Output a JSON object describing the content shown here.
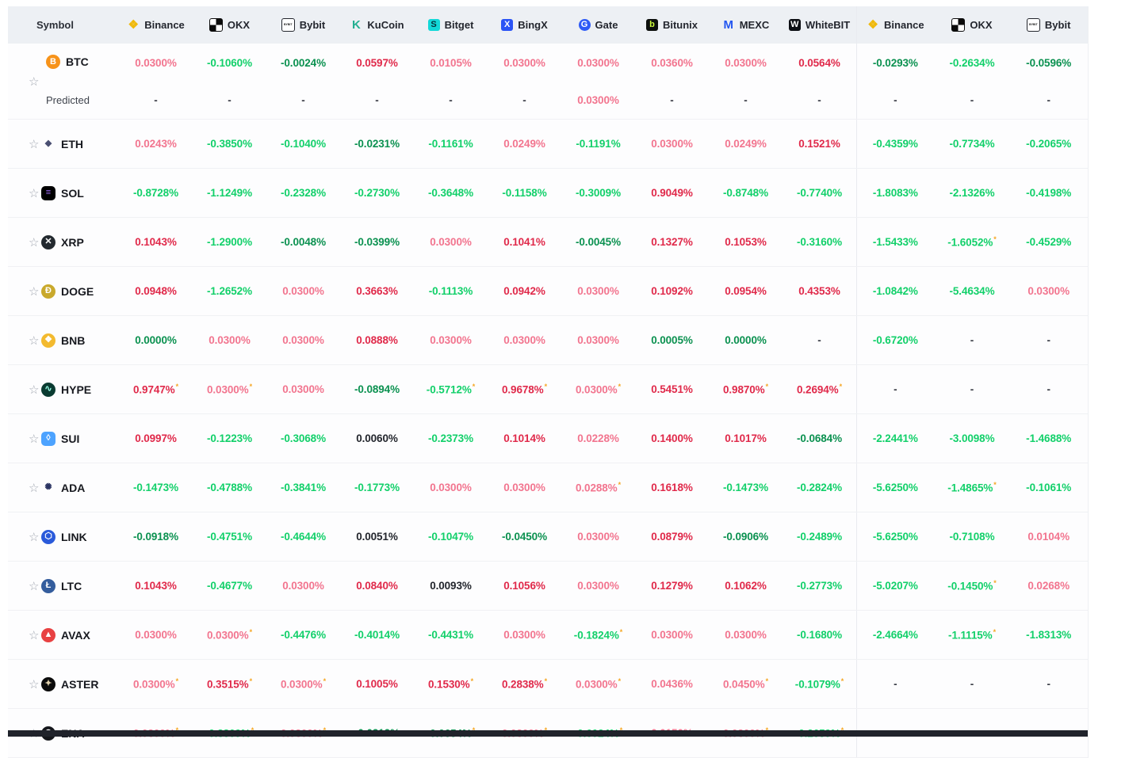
{
  "colors": {
    "pos_light": "#f2758f",
    "pos_strong": "#e0294a",
    "neg_bright": "#12d06a",
    "neg_dark": "#0b9150",
    "neutral_dark": "#23262d",
    "dash": "#3a3d46",
    "asterisk": "#f5a623",
    "header_bg": "#edf0f4",
    "bottom_bar": "#20232b"
  },
  "header": {
    "symbol_label": "Symbol",
    "exchanges": [
      {
        "key": "binance",
        "label": "Binance",
        "glyph": "❖",
        "fg": "#F0B90B",
        "bg": "transparent",
        "shape": "nobg"
      },
      {
        "key": "okx",
        "label": "OKX",
        "glyph": "",
        "fg": "#000000",
        "bg": "checker",
        "shape": ""
      },
      {
        "key": "bybit",
        "label": "Bybit",
        "glyph": "BYBIT",
        "fg": "#111111",
        "bg": "#ffffff",
        "shape": "tiny"
      },
      {
        "key": "kucoin",
        "label": "KuCoin",
        "glyph": "K",
        "fg": "#23af91",
        "bg": "transparent",
        "shape": "nobg"
      },
      {
        "key": "bitget",
        "label": "Bitget",
        "glyph": "S",
        "fg": "#07323c",
        "bg": "#12d8d8",
        "shape": ""
      },
      {
        "key": "bingx",
        "label": "BingX",
        "glyph": "X",
        "fg": "#ffffff",
        "bg": "#2b54f5",
        "shape": ""
      },
      {
        "key": "gate",
        "label": "Gate",
        "glyph": "G",
        "fg": "#ffffff",
        "bg": "#2e5bf6",
        "shape": "round"
      },
      {
        "key": "bitunix",
        "label": "Bitunix",
        "glyph": "b",
        "fg": "#c9f73a",
        "bg": "#0c0f0c",
        "shape": ""
      },
      {
        "key": "mexc",
        "label": "MEXC",
        "glyph": "M",
        "fg": "#2356f0",
        "bg": "transparent",
        "shape": "nobg"
      },
      {
        "key": "whitebit",
        "label": "WhiteBIT",
        "glyph": "W",
        "fg": "#ffffff",
        "bg": "#0c0e13",
        "shape": ""
      }
    ],
    "exchanges_second": [
      {
        "key": "binance-2",
        "label": "Binance",
        "glyph": "❖",
        "fg": "#F0B90B",
        "bg": "transparent",
        "shape": "nobg"
      },
      {
        "key": "okx-2",
        "label": "OKX",
        "glyph": "",
        "fg": "#000000",
        "bg": "checker",
        "shape": ""
      },
      {
        "key": "bybit-2",
        "label": "Bybit",
        "glyph": "BYBIT",
        "fg": "#111111",
        "bg": "#ffffff",
        "shape": "tiny"
      }
    ]
  },
  "predicted_label": "Predicted",
  "rows": [
    {
      "symbol": "BTC",
      "icon": {
        "glyph": "B",
        "fg": "#ffffff",
        "bg": "#f7931a",
        "shape": ""
      },
      "g1": [
        {
          "v": "0.0300%",
          "c": "pink"
        },
        {
          "v": "-0.1060%",
          "c": "green"
        },
        {
          "v": "-0.0024%",
          "c": "dkgreen"
        },
        {
          "v": "0.0597%",
          "c": "red"
        },
        {
          "v": "0.0105%",
          "c": "pink"
        },
        {
          "v": "0.0300%",
          "c": "pink"
        },
        {
          "v": "0.0300%",
          "c": "pink"
        },
        {
          "v": "0.0360%",
          "c": "pink"
        },
        {
          "v": "0.0300%",
          "c": "pink"
        },
        {
          "v": "0.0564%",
          "c": "red"
        }
      ],
      "g2": [
        {
          "v": "-0.0293%",
          "c": "dkgreen"
        },
        {
          "v": "-0.2634%",
          "c": "green"
        },
        {
          "v": "-0.0596%",
          "c": "dkgreen"
        }
      ],
      "predicted": {
        "g1": [
          {
            "v": "-",
            "c": "dash"
          },
          {
            "v": "-",
            "c": "dash"
          },
          {
            "v": "-",
            "c": "dash"
          },
          {
            "v": "-",
            "c": "dash"
          },
          {
            "v": "-",
            "c": "dash"
          },
          {
            "v": "-",
            "c": "dash"
          },
          {
            "v": "0.0300%",
            "c": "pink"
          },
          {
            "v": "-",
            "c": "dash"
          },
          {
            "v": "-",
            "c": "dash"
          },
          {
            "v": "-",
            "c": "dash"
          }
        ],
        "g2": [
          {
            "v": "-",
            "c": "dash"
          },
          {
            "v": "-",
            "c": "dash"
          },
          {
            "v": "-",
            "c": "dash"
          }
        ]
      }
    },
    {
      "symbol": "ETH",
      "icon": {
        "glyph": "◆",
        "fg": "#4a4f72",
        "bg": "transparent",
        "shape": "nobg"
      },
      "g1": [
        {
          "v": "0.0243%",
          "c": "pink"
        },
        {
          "v": "-0.3850%",
          "c": "green"
        },
        {
          "v": "-0.1040%",
          "c": "green"
        },
        {
          "v": "-0.0231%",
          "c": "dkgreen"
        },
        {
          "v": "-0.1161%",
          "c": "green"
        },
        {
          "v": "0.0249%",
          "c": "pink"
        },
        {
          "v": "-0.1191%",
          "c": "green"
        },
        {
          "v": "0.0300%",
          "c": "pink"
        },
        {
          "v": "0.0249%",
          "c": "pink"
        },
        {
          "v": "0.1521%",
          "c": "red"
        }
      ],
      "g2": [
        {
          "v": "-0.4359%",
          "c": "green"
        },
        {
          "v": "-0.7734%",
          "c": "green"
        },
        {
          "v": "-0.2065%",
          "c": "green"
        }
      ]
    },
    {
      "symbol": "SOL",
      "icon": {
        "glyph": "≡",
        "fg": "#a06bfa",
        "bg": "#000000",
        "shape": "sq"
      },
      "g1": [
        {
          "v": "-0.8728%",
          "c": "green"
        },
        {
          "v": "-1.1249%",
          "c": "green"
        },
        {
          "v": "-0.2328%",
          "c": "green"
        },
        {
          "v": "-0.2730%",
          "c": "green"
        },
        {
          "v": "-0.3648%",
          "c": "green"
        },
        {
          "v": "-0.1158%",
          "c": "green"
        },
        {
          "v": "-0.3009%",
          "c": "green"
        },
        {
          "v": "0.9049%",
          "c": "red"
        },
        {
          "v": "-0.8748%",
          "c": "green"
        },
        {
          "v": "-0.7740%",
          "c": "green"
        }
      ],
      "g2": [
        {
          "v": "-1.8083%",
          "c": "green"
        },
        {
          "v": "-2.1326%",
          "c": "green"
        },
        {
          "v": "-0.4198%",
          "c": "green"
        }
      ]
    },
    {
      "symbol": "XRP",
      "icon": {
        "glyph": "✕",
        "fg": "#ffffff",
        "bg": "#23292f",
        "shape": ""
      },
      "g1": [
        {
          "v": "0.1043%",
          "c": "red"
        },
        {
          "v": "-1.2900%",
          "c": "green"
        },
        {
          "v": "-0.0048%",
          "c": "dkgreen"
        },
        {
          "v": "-0.0399%",
          "c": "dkgreen"
        },
        {
          "v": "0.0300%",
          "c": "pink"
        },
        {
          "v": "0.1041%",
          "c": "red"
        },
        {
          "v": "-0.0045%",
          "c": "dkgreen"
        },
        {
          "v": "0.1327%",
          "c": "red"
        },
        {
          "v": "0.1053%",
          "c": "red"
        },
        {
          "v": "-0.3160%",
          "c": "green"
        }
      ],
      "g2": [
        {
          "v": "-1.5433%",
          "c": "green"
        },
        {
          "v": "-1.6052%",
          "c": "green",
          "a": true
        },
        {
          "v": "-0.4529%",
          "c": "green"
        }
      ]
    },
    {
      "symbol": "DOGE",
      "icon": {
        "glyph": "Ð",
        "fg": "#ffffff",
        "bg": "#c9a92c",
        "shape": ""
      },
      "g1": [
        {
          "v": "0.0948%",
          "c": "red"
        },
        {
          "v": "-1.2652%",
          "c": "green"
        },
        {
          "v": "0.0300%",
          "c": "pink"
        },
        {
          "v": "0.3663%",
          "c": "red"
        },
        {
          "v": "-0.1113%",
          "c": "green"
        },
        {
          "v": "0.0942%",
          "c": "red"
        },
        {
          "v": "0.0300%",
          "c": "pink"
        },
        {
          "v": "0.1092%",
          "c": "red"
        },
        {
          "v": "0.0954%",
          "c": "red"
        },
        {
          "v": "0.4353%",
          "c": "red"
        }
      ],
      "g2": [
        {
          "v": "-1.0842%",
          "c": "green"
        },
        {
          "v": "-5.4634%",
          "c": "green"
        },
        {
          "v": "0.0300%",
          "c": "pink"
        }
      ]
    },
    {
      "symbol": "BNB",
      "icon": {
        "glyph": "❖",
        "fg": "#ffffff",
        "bg": "#f3ba2f",
        "shape": ""
      },
      "g1": [
        {
          "v": "0.0000%",
          "c": "dkgreen"
        },
        {
          "v": "0.0300%",
          "c": "pink"
        },
        {
          "v": "0.0300%",
          "c": "pink"
        },
        {
          "v": "0.0888%",
          "c": "red"
        },
        {
          "v": "0.0300%",
          "c": "pink"
        },
        {
          "v": "0.0300%",
          "c": "pink"
        },
        {
          "v": "0.0300%",
          "c": "pink"
        },
        {
          "v": "0.0005%",
          "c": "dkgreen"
        },
        {
          "v": "0.0000%",
          "c": "dkgreen"
        },
        {
          "v": "-",
          "c": "dash"
        }
      ],
      "g2": [
        {
          "v": "-0.6720%",
          "c": "green"
        },
        {
          "v": "-",
          "c": "dash"
        },
        {
          "v": "-",
          "c": "dash"
        }
      ]
    },
    {
      "symbol": "HYPE",
      "icon": {
        "glyph": "∿",
        "fg": "#97fce4",
        "bg": "#0a3b31",
        "shape": ""
      },
      "g1": [
        {
          "v": "0.9747%",
          "c": "red",
          "a": true
        },
        {
          "v": "0.0300%",
          "c": "pink",
          "a": true
        },
        {
          "v": "0.0300%",
          "c": "pink"
        },
        {
          "v": "-0.0894%",
          "c": "dkgreen"
        },
        {
          "v": "-0.5712%",
          "c": "green",
          "a": true
        },
        {
          "v": "0.9678%",
          "c": "red",
          "a": true
        },
        {
          "v": "0.0300%",
          "c": "pink",
          "a": true
        },
        {
          "v": "0.5451%",
          "c": "red"
        },
        {
          "v": "0.9870%",
          "c": "red",
          "a": true
        },
        {
          "v": "0.2694%",
          "c": "red",
          "a": true
        }
      ],
      "g2": [
        {
          "v": "-",
          "c": "dash"
        },
        {
          "v": "-",
          "c": "dash"
        },
        {
          "v": "-",
          "c": "dash"
        }
      ]
    },
    {
      "symbol": "SUI",
      "icon": {
        "glyph": "◊",
        "fg": "#ffffff",
        "bg": "#4da3ff",
        "shape": "sq"
      },
      "g1": [
        {
          "v": "0.0997%",
          "c": "red"
        },
        {
          "v": "-0.1223%",
          "c": "green"
        },
        {
          "v": "-0.3068%",
          "c": "green"
        },
        {
          "v": "0.0060%",
          "c": "black"
        },
        {
          "v": "-0.2373%",
          "c": "green"
        },
        {
          "v": "0.1014%",
          "c": "red"
        },
        {
          "v": "0.0228%",
          "c": "pink"
        },
        {
          "v": "0.1400%",
          "c": "red"
        },
        {
          "v": "0.1017%",
          "c": "red"
        },
        {
          "v": "-0.0684%",
          "c": "dkgreen"
        }
      ],
      "g2": [
        {
          "v": "-2.2441%",
          "c": "green"
        },
        {
          "v": "-3.0098%",
          "c": "green"
        },
        {
          "v": "-1.4688%",
          "c": "green"
        }
      ]
    },
    {
      "symbol": "ADA",
      "icon": {
        "glyph": "✺",
        "fg": "#2a3362",
        "bg": "transparent",
        "shape": "nobg"
      },
      "g1": [
        {
          "v": "-0.1473%",
          "c": "green"
        },
        {
          "v": "-0.4788%",
          "c": "green"
        },
        {
          "v": "-0.3841%",
          "c": "green"
        },
        {
          "v": "-0.1773%",
          "c": "green"
        },
        {
          "v": "0.0300%",
          "c": "pink"
        },
        {
          "v": "0.0300%",
          "c": "pink"
        },
        {
          "v": "0.0288%",
          "c": "pink",
          "a": true
        },
        {
          "v": "0.1618%",
          "c": "red"
        },
        {
          "v": "-0.1473%",
          "c": "green"
        },
        {
          "v": "-0.2824%",
          "c": "green"
        }
      ],
      "g2": [
        {
          "v": "-5.6250%",
          "c": "green"
        },
        {
          "v": "-1.4865%",
          "c": "green",
          "a": true
        },
        {
          "v": "-0.1061%",
          "c": "green"
        }
      ]
    },
    {
      "symbol": "LINK",
      "icon": {
        "glyph": "⬡",
        "fg": "#ffffff",
        "bg": "#2a5ada",
        "shape": ""
      },
      "g1": [
        {
          "v": "-0.0918%",
          "c": "dkgreen"
        },
        {
          "v": "-0.4751%",
          "c": "green"
        },
        {
          "v": "-0.4644%",
          "c": "green"
        },
        {
          "v": "0.0051%",
          "c": "black"
        },
        {
          "v": "-0.1047%",
          "c": "green"
        },
        {
          "v": "-0.0450%",
          "c": "dkgreen"
        },
        {
          "v": "0.0300%",
          "c": "pink"
        },
        {
          "v": "0.0879%",
          "c": "red"
        },
        {
          "v": "-0.0906%",
          "c": "dkgreen"
        },
        {
          "v": "-0.2489%",
          "c": "green"
        }
      ],
      "g2": [
        {
          "v": "-5.6250%",
          "c": "green"
        },
        {
          "v": "-0.7108%",
          "c": "green"
        },
        {
          "v": "0.0104%",
          "c": "pink"
        }
      ]
    },
    {
      "symbol": "LTC",
      "icon": {
        "glyph": "Ł",
        "fg": "#ffffff",
        "bg": "#345d9d",
        "shape": ""
      },
      "g1": [
        {
          "v": "0.1043%",
          "c": "red"
        },
        {
          "v": "-0.4677%",
          "c": "green"
        },
        {
          "v": "0.0300%",
          "c": "pink"
        },
        {
          "v": "0.0840%",
          "c": "red"
        },
        {
          "v": "0.0093%",
          "c": "black"
        },
        {
          "v": "0.1056%",
          "c": "red"
        },
        {
          "v": "0.0300%",
          "c": "pink"
        },
        {
          "v": "0.1279%",
          "c": "red"
        },
        {
          "v": "0.1062%",
          "c": "red"
        },
        {
          "v": "-0.2773%",
          "c": "green"
        }
      ],
      "g2": [
        {
          "v": "-5.0207%",
          "c": "green"
        },
        {
          "v": "-0.1450%",
          "c": "green",
          "a": true
        },
        {
          "v": "0.0268%",
          "c": "pink"
        }
      ]
    },
    {
      "symbol": "AVAX",
      "icon": {
        "glyph": "▲",
        "fg": "#ffffff",
        "bg": "#e84142",
        "shape": ""
      },
      "g1": [
        {
          "v": "0.0300%",
          "c": "pink"
        },
        {
          "v": "0.0300%",
          "c": "pink",
          "a": true
        },
        {
          "v": "-0.4476%",
          "c": "green"
        },
        {
          "v": "-0.4014%",
          "c": "green"
        },
        {
          "v": "-0.4431%",
          "c": "green"
        },
        {
          "v": "0.0300%",
          "c": "pink"
        },
        {
          "v": "-0.1824%",
          "c": "green",
          "a": true
        },
        {
          "v": "0.0300%",
          "c": "pink"
        },
        {
          "v": "0.0300%",
          "c": "pink"
        },
        {
          "v": "-0.1680%",
          "c": "green"
        }
      ],
      "g2": [
        {
          "v": "-2.4664%",
          "c": "green"
        },
        {
          "v": "-1.1115%",
          "c": "green",
          "a": true
        },
        {
          "v": "-1.8313%",
          "c": "green"
        }
      ]
    },
    {
      "symbol": "ASTER",
      "icon": {
        "glyph": "✦",
        "fg": "#e0d0ac",
        "bg": "#0b0b0b",
        "shape": ""
      },
      "g1": [
        {
          "v": "0.0300%",
          "c": "pink",
          "a": true
        },
        {
          "v": "0.3515%",
          "c": "red",
          "a": true
        },
        {
          "v": "0.0300%",
          "c": "pink",
          "a": true
        },
        {
          "v": "0.1005%",
          "c": "red"
        },
        {
          "v": "0.1530%",
          "c": "red",
          "a": true
        },
        {
          "v": "0.2838%",
          "c": "red",
          "a": true
        },
        {
          "v": "0.0300%",
          "c": "pink",
          "a": true
        },
        {
          "v": "0.0436%",
          "c": "pink"
        },
        {
          "v": "0.0450%",
          "c": "pink",
          "a": true
        },
        {
          "v": "-0.1079%",
          "c": "green",
          "a": true
        }
      ],
      "g2": [
        {
          "v": "-",
          "c": "dash"
        },
        {
          "v": "-",
          "c": "dash"
        },
        {
          "v": "-",
          "c": "dash"
        }
      ]
    },
    {
      "symbol": "ENA",
      "icon": {
        "glyph": "⊘",
        "fg": "#ffffff",
        "bg": "#15171c",
        "shape": ""
      },
      "g1": [
        {
          "v": "0.0300%",
          "c": "pink",
          "a": true
        },
        {
          "v": "-0.3809%",
          "c": "green",
          "a": true
        },
        {
          "v": "0.0300%",
          "c": "pink",
          "a": true
        },
        {
          "v": "-0.0312%",
          "c": "dkgreen"
        },
        {
          "v": "-0.0654%",
          "c": "dkgreen",
          "a": true
        },
        {
          "v": "0.0300%",
          "c": "pink",
          "a": true
        },
        {
          "v": "-0.6024%",
          "c": "green",
          "a": true
        },
        {
          "v": "0.0150%",
          "c": "pink"
        },
        {
          "v": "0.0300%",
          "c": "pink",
          "a": true
        },
        {
          "v": "-0.2659%",
          "c": "green",
          "a": true
        }
      ],
      "g2": [
        {
          "v": "-",
          "c": "dash"
        },
        {
          "v": "-",
          "c": "dash"
        },
        {
          "v": "-",
          "c": "dash"
        }
      ]
    }
  ]
}
